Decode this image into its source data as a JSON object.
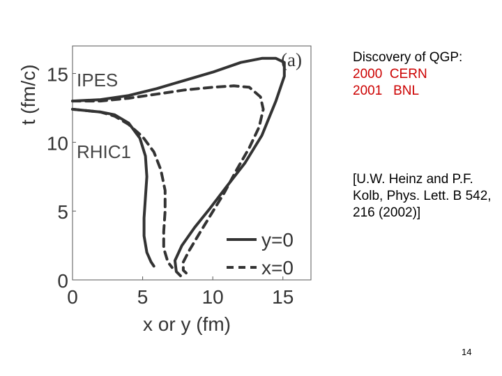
{
  "chart_data": {
    "type": "line",
    "panel_label": "(a)",
    "xlabel": "x or y (fm)",
    "ylabel": "t (fm/c)",
    "xlim": [
      0,
      17
    ],
    "ylim": [
      0,
      17
    ],
    "xticks": [
      0,
      5,
      10,
      15
    ],
    "yticks": [
      0,
      5,
      10,
      15
    ],
    "grid": false,
    "legend_placement": "bottom-right",
    "legend": [
      {
        "label": "y=0",
        "style": "solid"
      },
      {
        "label": "x=0",
        "style": "dashed"
      }
    ],
    "annotations": [
      "IPES",
      "RHIC1"
    ],
    "series": [
      {
        "name": "y=0",
        "label": "IPES",
        "style": "solid",
        "points": [
          [
            0,
            13.0
          ],
          [
            2,
            13.1
          ],
          [
            4,
            13.4
          ],
          [
            6,
            13.9
          ],
          [
            8,
            14.5
          ],
          [
            10,
            15.1
          ],
          [
            12,
            15.8
          ],
          [
            13.5,
            16.1
          ],
          [
            14.5,
            16.1
          ],
          [
            15.1,
            15.8
          ],
          [
            15.1,
            14.8
          ],
          [
            14.5,
            13.0
          ],
          [
            13.5,
            10.5
          ],
          [
            12.3,
            8.5
          ],
          [
            11,
            6.8
          ],
          [
            9.8,
            5.2
          ],
          [
            8.7,
            3.8
          ],
          [
            7.8,
            2.5
          ],
          [
            7.3,
            1.4
          ],
          [
            7.4,
            0.6
          ],
          [
            7.7,
            0.3
          ]
        ]
      },
      {
        "name": "x=0",
        "label": "IPES",
        "style": "dashed",
        "points": [
          [
            0,
            13.0
          ],
          [
            2,
            13.0
          ],
          [
            4,
            13.2
          ],
          [
            6,
            13.5
          ],
          [
            8,
            13.8
          ],
          [
            10,
            14.0
          ],
          [
            11.5,
            14.1
          ],
          [
            12.6,
            14.0
          ],
          [
            13.4,
            13.3
          ],
          [
            13.6,
            12.4
          ],
          [
            13.3,
            11.1
          ],
          [
            12.6,
            9.6
          ],
          [
            11.7,
            8.0
          ],
          [
            10.8,
            6.3
          ],
          [
            9.9,
            4.8
          ],
          [
            9.0,
            3.3
          ],
          [
            8.3,
            2.1
          ],
          [
            7.9,
            1.3
          ],
          [
            7.9,
            0.7
          ],
          [
            8.1,
            0.5
          ]
        ]
      },
      {
        "name": "y=0",
        "label": "RHIC1",
        "style": "solid",
        "points": [
          [
            0,
            12.4
          ],
          [
            1,
            12.3
          ],
          [
            2,
            12.2
          ],
          [
            3,
            12.0
          ],
          [
            4,
            11.4
          ],
          [
            4.8,
            10.3
          ],
          [
            5.2,
            9.0
          ],
          [
            5.3,
            7.5
          ],
          [
            5.2,
            6.0
          ],
          [
            5.1,
            4.5
          ],
          [
            5.1,
            3.2
          ],
          [
            5.3,
            2.0
          ],
          [
            5.6,
            1.3
          ],
          [
            5.8,
            1.0
          ]
        ]
      },
      {
        "name": "x=0",
        "label": "RHIC1",
        "style": "dashed",
        "points": [
          [
            0,
            12.4
          ],
          [
            1,
            12.3
          ],
          [
            2,
            12.2
          ],
          [
            3,
            11.9
          ],
          [
            4,
            11.3
          ],
          [
            5,
            10.4
          ],
          [
            5.8,
            9.3
          ],
          [
            6.3,
            8.0
          ],
          [
            6.6,
            6.5
          ],
          [
            6.6,
            5.0
          ],
          [
            6.5,
            3.5
          ],
          [
            6.5,
            2.3
          ],
          [
            6.8,
            1.3
          ],
          [
            7.1,
            0.9
          ]
        ]
      }
    ]
  },
  "side_text": {
    "heading": "Discovery of QGP:",
    "line1": "2000  CERN",
    "line2": "2001   BNL",
    "reference": "[U.W. Heinz and P.F. Kolb, Phys. Lett. B 542, 216 (2002)]"
  },
  "slide_number": "14"
}
